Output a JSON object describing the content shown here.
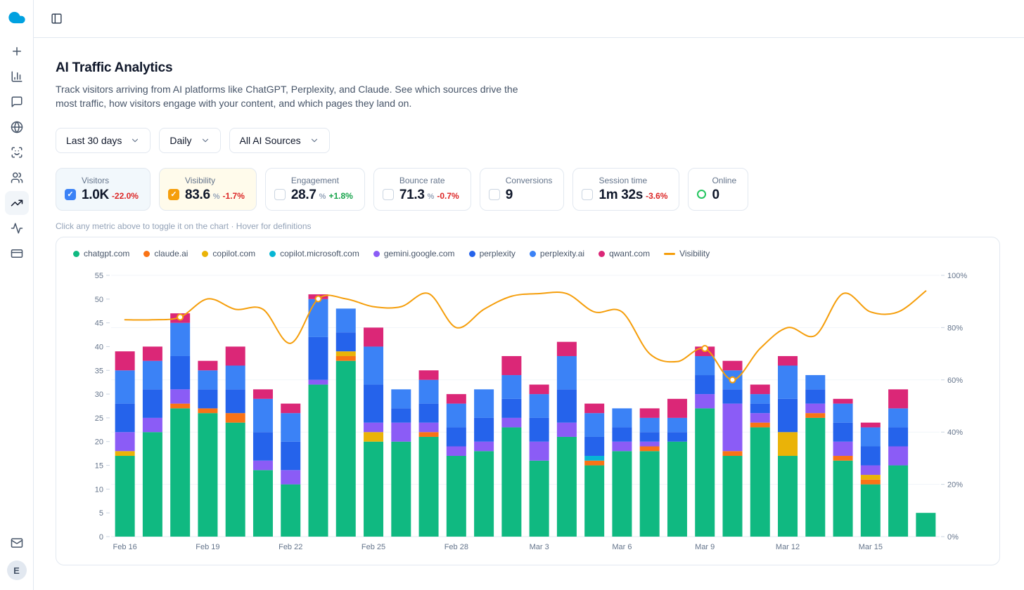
{
  "app": {
    "logo_icon": "cloud-logo",
    "sidebar": {
      "items": [
        "new",
        "analytics",
        "messages",
        "web",
        "face-scan",
        "audience",
        "traffic-trends",
        "activity",
        "billing"
      ],
      "active_item": "traffic-trends",
      "bottom_items": [
        "mail"
      ],
      "avatar_letter": "E"
    },
    "topbar": {
      "toggle_icon": "panel-left-icon"
    }
  },
  "header": {
    "title": "AI Traffic Analytics",
    "description": "Track visitors arriving from AI platforms like ChatGPT, Perplexity, and Claude. See which sources drive the most traffic, how visitors engage with your content, and which pages they land on."
  },
  "filters": [
    {
      "label": "Last 30 days",
      "icon": "chevron-down-icon"
    },
    {
      "label": "Daily",
      "icon": "chevron-down-icon"
    },
    {
      "label": "All AI Sources",
      "icon": "chevron-down-icon"
    }
  ],
  "metrics": [
    {
      "label": "Visitors",
      "value": "1.0K",
      "delta": "-22.0%",
      "delta_dir": "down",
      "checked": true,
      "accent": "#3b82f6",
      "bg": "#f2f8fc"
    },
    {
      "label": "Visibility",
      "value": "83.6",
      "suffix": "%",
      "delta": "-1.7%",
      "delta_dir": "down",
      "checked": true,
      "accent": "#f59e0b",
      "bg": "#fffbeb"
    },
    {
      "label": "Engagement",
      "value": "28.7",
      "suffix": "%",
      "delta": "+1.8%",
      "delta_dir": "up",
      "checked": false
    },
    {
      "label": "Bounce rate",
      "value": "71.3",
      "suffix": "%",
      "delta": "-0.7%",
      "delta_dir": "down",
      "checked": false
    },
    {
      "label": "Conversions",
      "value": "9",
      "checked": false
    },
    {
      "label": "Session time",
      "value": "1m 32s",
      "delta": "-3.6%",
      "delta_dir": "down",
      "checked": false
    },
    {
      "label": "Online",
      "value": "0",
      "type": "online"
    }
  ],
  "hint": "Click any metric above to toggle it on the chart · Hover for definitions",
  "colors": {
    "positive": "#16a34a",
    "negative": "#dc2626",
    "online": "#22c55e",
    "grid": "#f1f5f9",
    "baseline": "#e2e8f0",
    "axis_text": "#64748b",
    "tick": "#cbd5e1"
  },
  "chart_data": {
    "type": "stacked-bar+line",
    "categories": [
      "Feb 16",
      "Feb 17",
      "Feb 18",
      "Feb 19",
      "Feb 20",
      "Feb 21",
      "Feb 22",
      "Feb 23",
      "Feb 24",
      "Feb 25",
      "Feb 26",
      "Feb 27",
      "Feb 28",
      "Mar 1",
      "Mar 2",
      "Mar 3",
      "Mar 4",
      "Mar 5",
      "Mar 6",
      "Mar 7",
      "Mar 8",
      "Mar 9",
      "Mar 10",
      "Mar 11",
      "Mar 12",
      "Mar 13",
      "Mar 14",
      "Mar 15",
      "Mar 16",
      "Mar 17"
    ],
    "x_tick_every": 3,
    "series": [
      {
        "name": "chatgpt.com",
        "color": "#10b981",
        "values": [
          17,
          22,
          27,
          26,
          24,
          14,
          11,
          32,
          37,
          20,
          20,
          21,
          17,
          18,
          23,
          16,
          21,
          15,
          18,
          18,
          20,
          27,
          17,
          23,
          17,
          25,
          16,
          11,
          15,
          5
        ]
      },
      {
        "name": "claude.ai",
        "color": "#f97316",
        "values": [
          0,
          0,
          1,
          1,
          2,
          0,
          0,
          0,
          1,
          0,
          0,
          1,
          0,
          0,
          0,
          0,
          0,
          1,
          0,
          1,
          0,
          0,
          1,
          1,
          0,
          1,
          1,
          1,
          0,
          0
        ]
      },
      {
        "name": "copilot.com",
        "color": "#eab308",
        "values": [
          1,
          0,
          0,
          0,
          0,
          0,
          0,
          0,
          1,
          2,
          0,
          0,
          0,
          0,
          0,
          0,
          0,
          0,
          0,
          0,
          0,
          0,
          0,
          0,
          5,
          0,
          0,
          1,
          0,
          0
        ]
      },
      {
        "name": "copilot.microsoft.com",
        "color": "#06b6d4",
        "values": [
          0,
          0,
          0,
          0,
          0,
          0,
          0,
          0,
          0,
          0,
          0,
          0,
          0,
          0,
          0,
          0,
          0,
          1,
          0,
          0,
          0,
          0,
          0,
          0,
          0,
          0,
          0,
          0,
          0,
          0
        ]
      },
      {
        "name": "gemini.google.com",
        "color": "#8b5cf6",
        "values": [
          4,
          3,
          3,
          0,
          0,
          2,
          3,
          1,
          0,
          2,
          4,
          2,
          2,
          2,
          2,
          4,
          3,
          0,
          2,
          1,
          0,
          3,
          10,
          2,
          0,
          2,
          3,
          2,
          4,
          0
        ]
      },
      {
        "name": "perplexity",
        "color": "#2563eb",
        "values": [
          6,
          6,
          7,
          4,
          5,
          6,
          6,
          9,
          4,
          8,
          3,
          4,
          4,
          5,
          4,
          5,
          7,
          4,
          3,
          2,
          2,
          4,
          3,
          2,
          7,
          3,
          4,
          4,
          4,
          0
        ]
      },
      {
        "name": "perplexity.ai",
        "color": "#3b82f6",
        "values": [
          7,
          6,
          7,
          4,
          5,
          7,
          6,
          8,
          5,
          8,
          4,
          5,
          5,
          6,
          5,
          5,
          7,
          5,
          4,
          3,
          3,
          4,
          4,
          2,
          7,
          3,
          4,
          4,
          4,
          0
        ]
      },
      {
        "name": "qwant.com",
        "color": "#db2777",
        "values": [
          4,
          3,
          2,
          2,
          4,
          2,
          2,
          1,
          0,
          4,
          0,
          2,
          2,
          0,
          4,
          2,
          3,
          2,
          0,
          2,
          4,
          2,
          2,
          2,
          2,
          0,
          1,
          1,
          4,
          0
        ]
      }
    ],
    "line": {
      "name": "Visibility",
      "color": "#f59e0b",
      "axis": "right",
      "unit": "%",
      "values": [
        83,
        83,
        84,
        91,
        87,
        87,
        74,
        91,
        91,
        88,
        88,
        93,
        80,
        87,
        92,
        93,
        93,
        86,
        86,
        70,
        67,
        72,
        60,
        72,
        80,
        77,
        93,
        86,
        86,
        94
      ],
      "markers": [
        2,
        7,
        21,
        22
      ]
    },
    "left_axis": {
      "min": 0,
      "max": 55,
      "step": 5
    },
    "right_axis": {
      "min": 0,
      "max": 100,
      "step": 20,
      "suffix": "%"
    },
    "legend_position": "top"
  }
}
